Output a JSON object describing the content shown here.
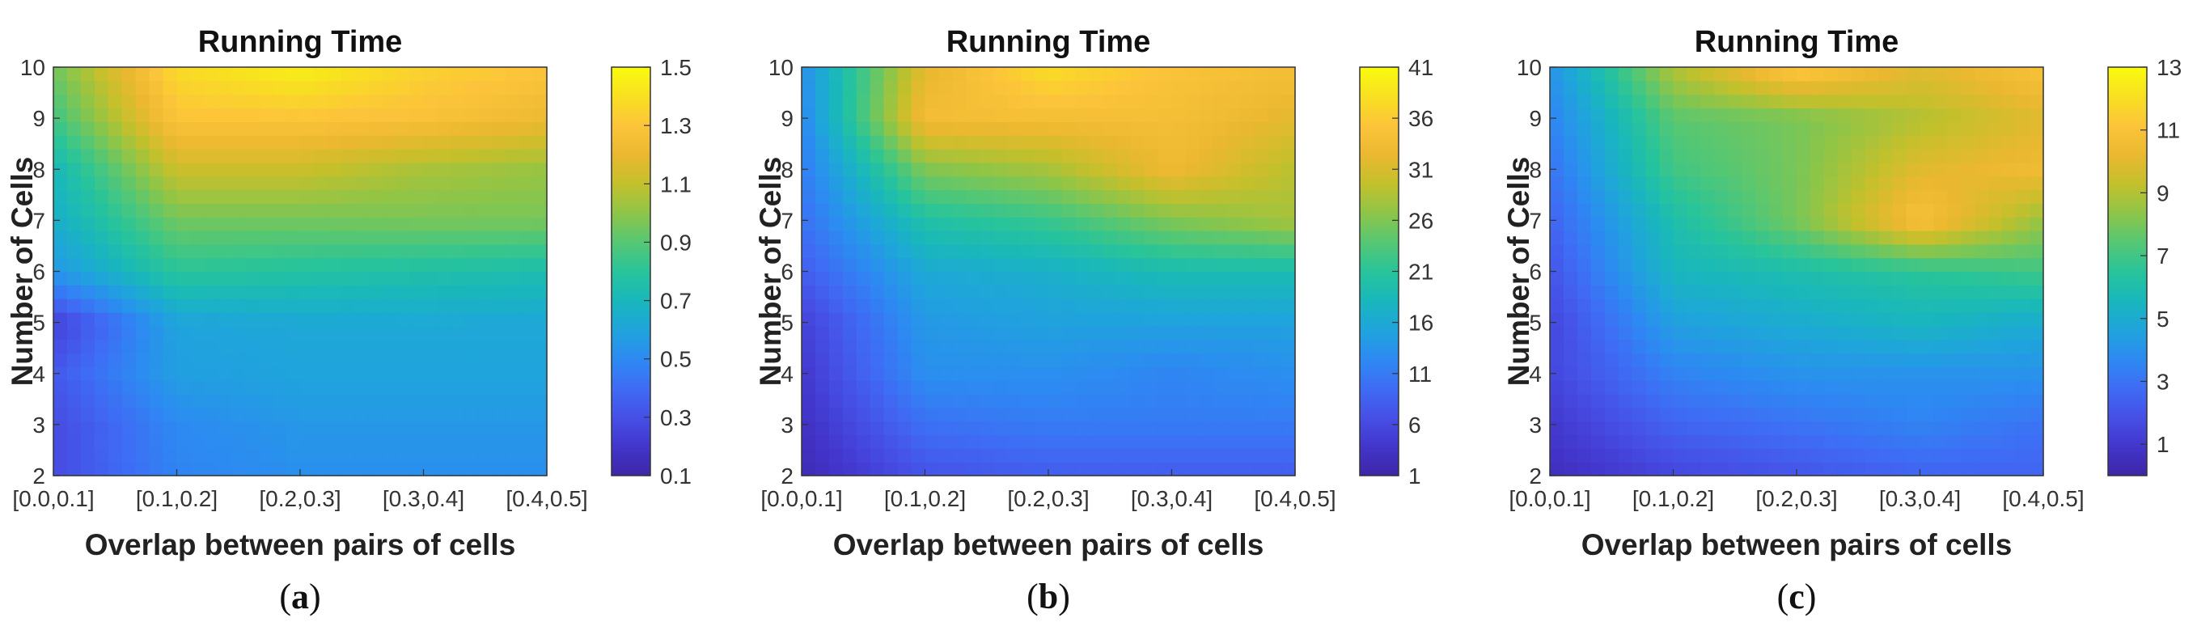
{
  "figure": {
    "colors": {
      "viridis_like": [
        "#3e26a8",
        "#4336cc",
        "#4650e6",
        "#3f6cf5",
        "#2d8af2",
        "#1fa4dc",
        "#19b7bc",
        "#28c49a",
        "#56c773",
        "#8ec548",
        "#c3c02c",
        "#eab830",
        "#fcc43a",
        "#f8e021",
        "#f9fb0e"
      ]
    }
  },
  "chart_data": [
    {
      "type": "heatmap",
      "panel_label": "a",
      "title": "Running Time",
      "xlabel": "Overlap between pairs of cells",
      "ylabel": "Number of Cells",
      "x_categories": [
        "[0.0,0.1]",
        "[0.1,0.2]",
        "[0.2,0.3]",
        "[0.3,0.4]",
        "[0.4,0.5]"
      ],
      "y_ticks": [
        "2",
        "3",
        "4",
        "5",
        "6",
        "7",
        "8",
        "9",
        "10"
      ],
      "colorbar_ticks": [
        "0.1",
        "0.3",
        "0.5",
        "0.7",
        "0.9",
        "1.1",
        "1.3",
        "1.5"
      ],
      "clim": [
        0.1,
        1.5
      ],
      "z": [
        [
          0.28,
          0.48,
          0.52,
          0.52,
          0.52
        ],
        [
          0.28,
          0.5,
          0.55,
          0.55,
          0.55
        ],
        [
          0.33,
          0.58,
          0.6,
          0.6,
          0.6
        ],
        [
          0.24,
          0.6,
          0.62,
          0.62,
          0.62
        ],
        [
          0.55,
          0.8,
          0.78,
          0.76,
          0.74
        ],
        [
          0.65,
          0.95,
          0.95,
          0.96,
          0.96
        ],
        [
          0.7,
          1.12,
          1.12,
          1.05,
          1.02
        ],
        [
          0.85,
          1.3,
          1.3,
          1.28,
          1.22
        ],
        [
          0.95,
          1.38,
          1.46,
          1.35,
          1.3
        ]
      ]
    },
    {
      "type": "heatmap",
      "panel_label": "b",
      "title": "Running Time",
      "xlabel": "Overlap between pairs of cells",
      "ylabel": "Number of Cells",
      "x_categories": [
        "[0.0,0.1]",
        "[0.1,0.2]",
        "[0.2,0.3]",
        "[0.3,0.4]",
        "[0.4,0.5]"
      ],
      "y_ticks": [
        "2",
        "3",
        "4",
        "5",
        "6",
        "7",
        "8",
        "9",
        "10"
      ],
      "colorbar_ticks": [
        "1",
        "6",
        "11",
        "16",
        "21",
        "26",
        "31",
        "36",
        "41"
      ],
      "clim": [
        1,
        41
      ],
      "z": [
        [
          2,
          7,
          8,
          8,
          8
        ],
        [
          3,
          10,
          11,
          11,
          11
        ],
        [
          4,
          13,
          13,
          12,
          13
        ],
        [
          5,
          14,
          15,
          15,
          15
        ],
        [
          8,
          16,
          17,
          19,
          19
        ],
        [
          10,
          20,
          22,
          26,
          28
        ],
        [
          11,
          26,
          28,
          33,
          29
        ],
        [
          12,
          34,
          34,
          34,
          32
        ],
        [
          13,
          32,
          38,
          35,
          34
        ]
      ]
    },
    {
      "type": "heatmap",
      "panel_label": "c",
      "title": "Running Time",
      "xlabel": "Overlap between pairs of cells",
      "ylabel": "Number of Cells",
      "x_categories": [
        "[0.0,0.1]",
        "[0.1,0.2]",
        "[0.2,0.3]",
        "[0.3,0.4]",
        "[0.4,0.5]"
      ],
      "y_ticks": [
        "2",
        "3",
        "4",
        "5",
        "6",
        "7",
        "8",
        "9",
        "10"
      ],
      "colorbar_ticks": [
        "1",
        "3",
        "5",
        "7",
        "9",
        "11",
        "13"
      ],
      "clim": [
        0,
        13
      ],
      "z": [
        [
          0.5,
          1.5,
          2.0,
          2.5,
          2.5
        ],
        [
          1.0,
          2.5,
          3.0,
          3.5,
          3.0
        ],
        [
          1.5,
          3.5,
          4.0,
          4.0,
          4.0
        ],
        [
          1.5,
          4.5,
          5.0,
          5.5,
          5.0
        ],
        [
          2.0,
          5.5,
          6.0,
          6.5,
          7.0
        ],
        [
          2.5,
          6.0,
          8.0,
          11.0,
          8.5
        ],
        [
          3.0,
          7.0,
          8.0,
          10.0,
          10.5
        ],
        [
          3.5,
          7.5,
          8.0,
          9.0,
          10.0
        ],
        [
          4.0,
          9.0,
          11.5,
          10.0,
          11.0
        ]
      ]
    }
  ]
}
